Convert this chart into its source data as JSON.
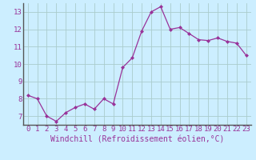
{
  "x": [
    0,
    1,
    2,
    3,
    4,
    5,
    6,
    7,
    8,
    9,
    10,
    11,
    12,
    13,
    14,
    15,
    16,
    17,
    18,
    19,
    20,
    21,
    22,
    23
  ],
  "y": [
    8.2,
    8.0,
    7.0,
    6.7,
    7.2,
    7.5,
    7.7,
    7.4,
    8.0,
    7.7,
    9.8,
    10.35,
    11.9,
    13.0,
    13.3,
    12.0,
    12.1,
    11.75,
    11.4,
    11.35,
    11.5,
    11.3,
    11.2,
    10.5
  ],
  "line_color": "#993399",
  "marker_color": "#993399",
  "bg_color": "#cceeff",
  "grid_color": "#aacccc",
  "xlabel": "Windchill (Refroidissement éolien,°C)",
  "xlabel_color": "#993399",
  "tick_color": "#993399",
  "ylim": [
    6.5,
    13.5
  ],
  "xlim": [
    -0.5,
    23.5
  ],
  "yticks": [
    7,
    8,
    9,
    10,
    11,
    12,
    13
  ],
  "xticks": [
    0,
    1,
    2,
    3,
    4,
    5,
    6,
    7,
    8,
    9,
    10,
    11,
    12,
    13,
    14,
    15,
    16,
    17,
    18,
    19,
    20,
    21,
    22,
    23
  ],
  "tick_fontsize": 6.5,
  "label_fontsize": 7
}
